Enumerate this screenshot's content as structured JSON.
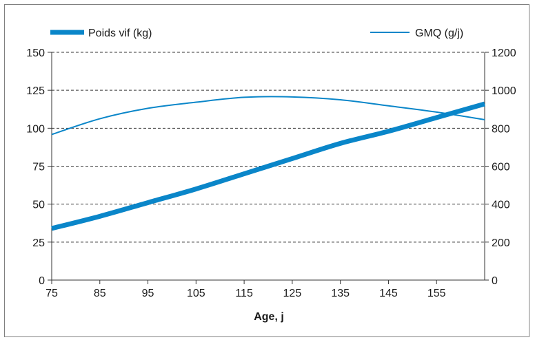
{
  "chart_data": {
    "type": "line",
    "xlabel": "Age, j",
    "x_ticks": [
      "75",
      "85",
      "95",
      "105",
      "115",
      "125",
      "135",
      "145",
      "155"
    ],
    "xlim": [
      75,
      165
    ],
    "y_left": {
      "label": "",
      "ticks": [
        "0",
        "25",
        "50",
        "75",
        "100",
        "125",
        "150"
      ],
      "ylim": [
        0,
        150
      ]
    },
    "y_right": {
      "label": "",
      "ticks": [
        "0",
        "200",
        "400",
        "600",
        "800",
        "1000",
        "1200"
      ],
      "ylim": [
        0,
        1200
      ]
    },
    "grid": "horizontal-dashed",
    "legend_placement": "top",
    "series": [
      {
        "name": "Poids vif (kg)",
        "axis": "left",
        "color": "#0a86c9",
        "style": "thick",
        "x": [
          75,
          85,
          95,
          105,
          115,
          125,
          135,
          145,
          155,
          165
        ],
        "y": [
          34,
          42,
          51,
          60,
          70,
          80,
          90,
          98,
          107,
          116
        ]
      },
      {
        "name": "GMQ (g/j)",
        "axis": "right",
        "color": "#0a86c9",
        "style": "thin",
        "x": [
          75,
          85,
          95,
          105,
          115,
          125,
          135,
          145,
          155,
          165
        ],
        "y": [
          767,
          850,
          905,
          937,
          963,
          965,
          950,
          918,
          885,
          845
        ]
      }
    ]
  }
}
